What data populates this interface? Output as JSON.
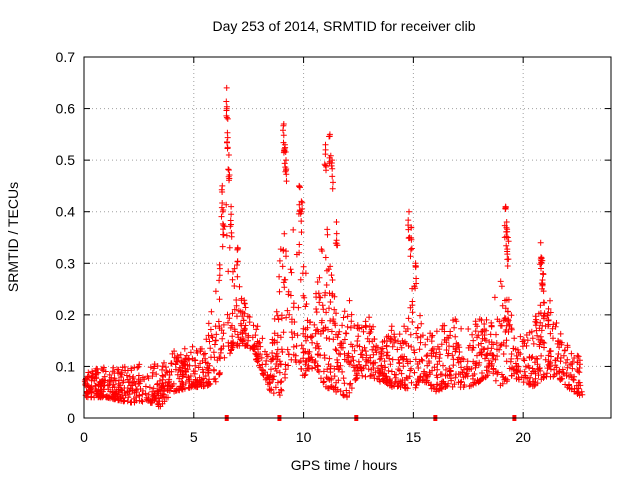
{
  "chart_data": {
    "type": "scatter",
    "title": "Day 253 of 2014, SRMTID for receiver clib",
    "xlabel": "GPS time / hours",
    "ylabel": "SRMTID / TECUs",
    "xlim": [
      0,
      24
    ],
    "ylim": [
      0,
      0.7
    ],
    "xticks": [
      0,
      5,
      10,
      15,
      20
    ],
    "xtick_labels": [
      "0",
      "5",
      "10",
      "15",
      "20"
    ],
    "yticks": [
      0,
      0.1,
      0.2,
      0.3,
      0.4,
      0.5,
      0.6,
      0.7
    ],
    "ytick_labels": [
      "0",
      "0.1",
      "0.2",
      "0.3",
      "0.4",
      "0.5",
      "0.6",
      "0.7"
    ],
    "grid": true,
    "marker": "+",
    "series_color": "#ff0000",
    "envelope": {
      "x": [
        0,
        1,
        2,
        3,
        3.5,
        4,
        5,
        5.5,
        6,
        6.4,
        6.8,
        7.5,
        8,
        8.5,
        9,
        9.5,
        10,
        10.5,
        11,
        11.5,
        12,
        12.5,
        13,
        13.5,
        14,
        14.5,
        15,
        15.5,
        16,
        16.5,
        17,
        17.5,
        18,
        18.5,
        19,
        19.5,
        20,
        20.5,
        21,
        21.5,
        22,
        22.7
      ],
      "low": [
        0.04,
        0.04,
        0.03,
        0.03,
        0.02,
        0.05,
        0.06,
        0.06,
        0.07,
        0.1,
        0.14,
        0.14,
        0.1,
        0.05,
        0.04,
        0.12,
        0.08,
        0.1,
        0.06,
        0.05,
        0.04,
        0.08,
        0.08,
        0.07,
        0.06,
        0.06,
        0.05,
        0.07,
        0.05,
        0.06,
        0.06,
        0.06,
        0.07,
        0.08,
        0.06,
        0.08,
        0.07,
        0.06,
        0.08,
        0.08,
        0.06,
        0.04
      ],
      "high": [
        0.09,
        0.1,
        0.1,
        0.11,
        0.1,
        0.13,
        0.14,
        0.14,
        0.26,
        0.45,
        0.3,
        0.2,
        0.18,
        0.12,
        0.35,
        0.42,
        0.3,
        0.22,
        0.4,
        0.2,
        0.25,
        0.18,
        0.2,
        0.15,
        0.18,
        0.16,
        0.28,
        0.15,
        0.18,
        0.18,
        0.2,
        0.18,
        0.2,
        0.2,
        0.3,
        0.2,
        0.15,
        0.2,
        0.25,
        0.2,
        0.15,
        0.12
      ]
    },
    "peaks": [
      {
        "x": 6.3,
        "y": 0.45
      },
      {
        "x": 6.5,
        "y": 0.64
      },
      {
        "x": 6.55,
        "y": 0.58
      },
      {
        "x": 6.6,
        "y": 0.51
      },
      {
        "x": 6.7,
        "y": 0.41
      },
      {
        "x": 7.0,
        "y": 0.33
      },
      {
        "x": 9.1,
        "y": 0.57
      },
      {
        "x": 9.15,
        "y": 0.53
      },
      {
        "x": 9.2,
        "y": 0.5
      },
      {
        "x": 9.8,
        "y": 0.45
      },
      {
        "x": 9.9,
        "y": 0.42
      },
      {
        "x": 11.0,
        "y": 0.53
      },
      {
        "x": 11.2,
        "y": 0.55
      },
      {
        "x": 11.3,
        "y": 0.5
      },
      {
        "x": 11.5,
        "y": 0.38
      },
      {
        "x": 14.8,
        "y": 0.4
      },
      {
        "x": 14.9,
        "y": 0.37
      },
      {
        "x": 15.1,
        "y": 0.3
      },
      {
        "x": 19.2,
        "y": 0.41
      },
      {
        "x": 19.25,
        "y": 0.38
      },
      {
        "x": 19.3,
        "y": 0.35
      },
      {
        "x": 20.8,
        "y": 0.34
      },
      {
        "x": 20.85,
        "y": 0.31
      },
      {
        "x": 20.9,
        "y": 0.28
      }
    ],
    "baseline_markers_x": [
      6.5,
      8.9,
      12.4,
      16.0,
      19.6
    ],
    "n_points_background": 1800
  }
}
